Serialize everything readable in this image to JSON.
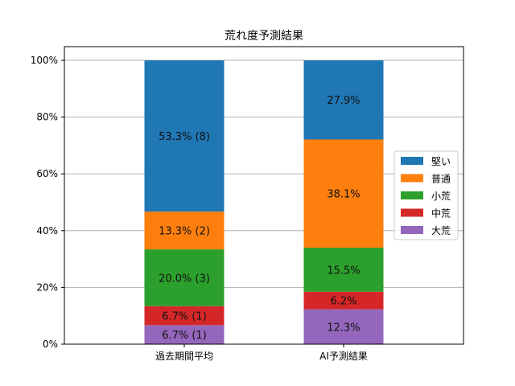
{
  "chart_data": {
    "type": "bar",
    "stacked": true,
    "title": "荒れ度予測結果",
    "xlabel": "",
    "ylabel": "",
    "ylim": [
      0,
      100
    ],
    "y_ticks": [
      "0%",
      "20%",
      "40%",
      "60%",
      "80%",
      "100%"
    ],
    "grid": "horizontal",
    "legend_position": "center-right",
    "categories": [
      "過去期間平均",
      "AI予測結果"
    ],
    "series": [
      {
        "name": "大荒",
        "color": "#9467bd",
        "values": [
          6.7,
          12.3
        ],
        "labels": [
          "6.7% (1)",
          "12.3%"
        ]
      },
      {
        "name": "中荒",
        "color": "#d62728",
        "values": [
          6.7,
          6.2
        ],
        "labels": [
          "6.7% (1)",
          "6.2%"
        ]
      },
      {
        "name": "小荒",
        "color": "#2ca02c",
        "values": [
          20.0,
          15.5
        ],
        "labels": [
          "20.0% (3)",
          "15.5%"
        ]
      },
      {
        "name": "普通",
        "color": "#ff7f0e",
        "values": [
          13.3,
          38.1
        ],
        "labels": [
          "13.3% (2)",
          "38.1%"
        ]
      },
      {
        "name": "堅い",
        "color": "#1f77b4",
        "values": [
          53.3,
          27.9
        ],
        "labels": [
          "53.3% (8)",
          "27.9%"
        ]
      }
    ],
    "legend_order": [
      "堅い",
      "普通",
      "小荒",
      "中荒",
      "大荒"
    ]
  }
}
